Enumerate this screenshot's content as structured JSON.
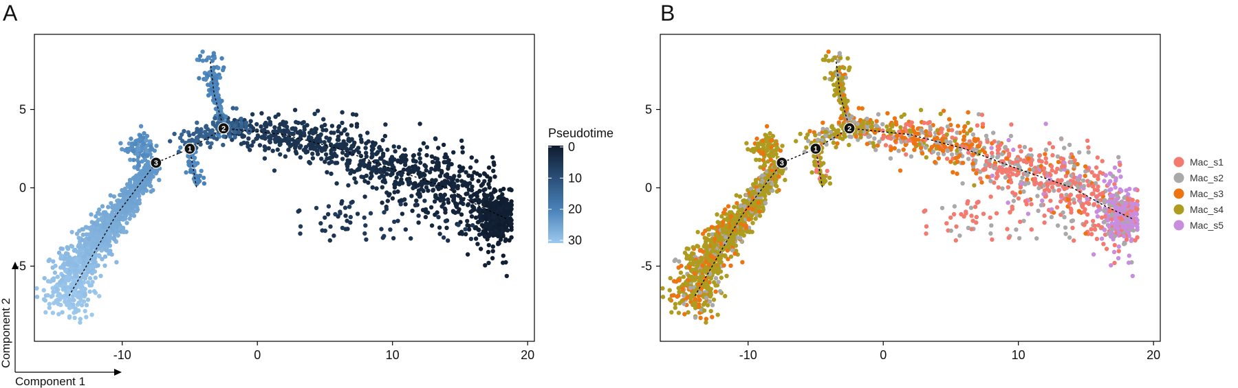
{
  "chart_data": [
    {
      "panel": "A",
      "type": "scatter",
      "title": "",
      "xlabel": "Component 1",
      "ylabel": "Component 2",
      "xlim": [
        -16.5,
        20.5
      ],
      "ylim": [
        -9.8,
        9.8
      ],
      "xticks": [
        -10,
        0,
        10,
        20
      ],
      "yticks": [
        -5,
        0,
        5
      ],
      "color_by": "Pseudotime",
      "legend": {
        "title": "Pseudotime",
        "ticks": [
          "0",
          "10",
          "20",
          "30"
        ],
        "gradient": [
          "#0f1b2d",
          "#2a4f78",
          "#4a84bb",
          "#9ec9ee"
        ],
        "placement": "right"
      },
      "branch_points": [
        {
          "label": "1",
          "x": -5.0,
          "y": 2.5
        },
        {
          "label": "2",
          "x": -2.5,
          "y": 3.8
        },
        {
          "label": "3",
          "x": -7.5,
          "y": 1.6
        }
      ]
    },
    {
      "panel": "B",
      "type": "scatter",
      "title": "",
      "xlabel": "",
      "ylabel": "",
      "xlim": [
        -16.5,
        20.5
      ],
      "ylim": [
        -9.8,
        9.8
      ],
      "xticks": [
        -10,
        0,
        10,
        20
      ],
      "yticks": [
        -5,
        0,
        5
      ],
      "color_by": "State",
      "legend": {
        "title": "",
        "placement": "right",
        "items": [
          {
            "label": "Mac_s1",
            "color": "#f47a6f"
          },
          {
            "label": "Mac_s2",
            "color": "#a9a9a9"
          },
          {
            "label": "Mac_s3",
            "color": "#ee7311"
          },
          {
            "label": "Mac_s4",
            "color": "#ad9c1f"
          },
          {
            "label": "Mac_s5",
            "color": "#c98de0"
          }
        ]
      },
      "branch_points": [
        {
          "label": "1",
          "x": -5.0,
          "y": 2.5
        },
        {
          "label": "2",
          "x": -2.5,
          "y": 3.8
        },
        {
          "label": "3",
          "x": -7.5,
          "y": 1.6
        }
      ]
    }
  ],
  "trajectory_segments": [
    {
      "name": "main-branch",
      "points": [
        [
          -2.5,
          3.8
        ],
        [
          2,
          3.4
        ],
        [
          6,
          2.5
        ],
        [
          10,
          1.2
        ],
        [
          14,
          0.0
        ],
        [
          16.5,
          -1.2
        ],
        [
          18.5,
          -2.0
        ]
      ]
    },
    {
      "name": "top-branch",
      "points": [
        [
          -2.5,
          3.8
        ],
        [
          -3.2,
          6.0
        ],
        [
          -3.5,
          8.2
        ]
      ]
    },
    {
      "name": "left-branch",
      "points": [
        [
          -5.0,
          2.5
        ],
        [
          -7.5,
          1.6
        ],
        [
          -10.5,
          -1.8
        ],
        [
          -14,
          -7.0
        ]
      ]
    },
    {
      "name": "stem-1-2",
      "points": [
        [
          -5.0,
          2.5
        ],
        [
          -2.5,
          3.8
        ]
      ]
    },
    {
      "name": "small-down-branch",
      "points": [
        [
          -5.0,
          2.5
        ],
        [
          -4.5,
          0.0
        ]
      ]
    }
  ]
}
